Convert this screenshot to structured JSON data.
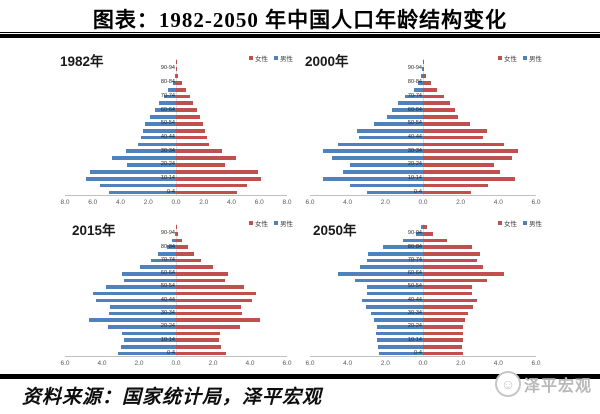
{
  "title": "图表：1982-2050 年中国人口年龄结构变化",
  "source_line": "资料来源：国家统计局，泽平宏观",
  "logo": {
    "text": "泽平宏观",
    "icon": "smiley-face-icon"
  },
  "colors": {
    "female": "#C0504D",
    "male": "#4F81BD"
  },
  "legend": {
    "female_label": "女性",
    "male_label": "男性"
  },
  "chart_data": [
    {
      "type": "bar",
      "subtype": "population-pyramid",
      "id": "1982",
      "year_label": "1982年",
      "x_max": 8.0,
      "x_ticks": [
        "8.0",
        "6.0",
        "4.0",
        "2.0",
        "0.0",
        "2.0",
        "4.0",
        "6.0",
        "8.0"
      ],
      "age_groups": [
        "0-4",
        "5-9",
        "10-14",
        "15-19",
        "20-24",
        "25-29",
        "30-34",
        "35-39",
        "40-44",
        "45-49",
        "50-54",
        "55-59",
        "60-64",
        "65-69",
        "70-74",
        "75-79",
        "80-84",
        "85-89",
        "90-94",
        "95+"
      ],
      "visible_age_labels": [
        "0-4",
        "10-14",
        "20-24",
        "30-34",
        "40-44",
        "50-54",
        "60-64",
        "70-74",
        "80-84",
        "90-94"
      ],
      "series": [
        {
          "name": "男性",
          "side": "left",
          "values": [
            4.8,
            5.5,
            6.5,
            6.2,
            3.55,
            4.6,
            3.6,
            2.75,
            2.5,
            2.35,
            2.2,
            1.9,
            1.55,
            1.2,
            0.9,
            0.55,
            0.25,
            0.1,
            0.03,
            0.01
          ]
        },
        {
          "name": "女性",
          "side": "right",
          "values": [
            4.4,
            5.1,
            6.1,
            5.9,
            3.5,
            4.3,
            3.35,
            2.4,
            2.2,
            2.1,
            1.95,
            1.7,
            1.5,
            1.2,
            1.0,
            0.7,
            0.4,
            0.15,
            0.05,
            0.02
          ]
        }
      ]
    },
    {
      "type": "bar",
      "subtype": "population-pyramid",
      "id": "2000",
      "year_label": "2000年",
      "x_max": 6.0,
      "x_ticks": [
        "6.0",
        "4.0",
        "2.0",
        "0.0",
        "2.0",
        "4.0",
        "6.0"
      ],
      "age_groups": [
        "0-4",
        "5-9",
        "10-14",
        "15-19",
        "20-24",
        "25-29",
        "30-34",
        "35-39",
        "40-44",
        "45-49",
        "50-54",
        "55-59",
        "60-64",
        "65-69",
        "70-74",
        "75-79",
        "80-84",
        "85-89",
        "90-94",
        "95+"
      ],
      "visible_age_labels": [
        "0-4",
        "10-14",
        "20-24",
        "30-34",
        "40-44",
        "50-54",
        "60-64",
        "70-74",
        "80-84",
        "90-94"
      ],
      "series": [
        {
          "name": "男性",
          "side": "left",
          "values": [
            3.0,
            3.9,
            5.3,
            4.25,
            3.9,
            4.85,
            5.3,
            4.5,
            3.4,
            3.5,
            2.6,
            1.9,
            1.65,
            1.35,
            0.95,
            0.5,
            0.25,
            0.1,
            0.03,
            0.01
          ]
        },
        {
          "name": "女性",
          "side": "right",
          "values": [
            2.55,
            3.45,
            4.9,
            4.1,
            3.75,
            4.7,
            5.05,
            4.3,
            3.2,
            3.4,
            2.5,
            1.85,
            1.7,
            1.45,
            1.1,
            0.75,
            0.4,
            0.18,
            0.07,
            0.02
          ]
        }
      ]
    },
    {
      "type": "bar",
      "subtype": "population-pyramid",
      "id": "2015",
      "year_label": "2015年",
      "x_max": 6.0,
      "x_ticks": [
        "6.0",
        "4.0",
        "2.0",
        "0.0",
        "2.0",
        "4.0",
        "6.0"
      ],
      "age_groups": [
        "0-4",
        "5-9",
        "10-14",
        "15-19",
        "20-24",
        "25-29",
        "30-34",
        "35-39",
        "40-44",
        "45-49",
        "50-54",
        "55-59",
        "60-64",
        "65-69",
        "70-74",
        "75-79",
        "80-84",
        "85-89",
        "90-94",
        "95+"
      ],
      "visible_age_labels": [
        "0-4",
        "10-14",
        "20-24",
        "30-34",
        "40-44",
        "50-54",
        "60-64",
        "70-74",
        "80-84",
        "90-94"
      ],
      "series": [
        {
          "name": "男性",
          "side": "left",
          "values": [
            3.15,
            3.0,
            2.8,
            2.9,
            3.7,
            4.7,
            3.6,
            3.55,
            4.3,
            4.5,
            3.8,
            2.8,
            2.9,
            1.95,
            1.35,
            0.95,
            0.5,
            0.2,
            0.07,
            0.02
          ]
        },
        {
          "name": "女性",
          "side": "right",
          "values": [
            2.7,
            2.45,
            2.35,
            2.4,
            3.45,
            4.55,
            3.55,
            3.5,
            4.1,
            4.35,
            3.65,
            2.65,
            2.8,
            2.0,
            1.35,
            1.0,
            0.65,
            0.35,
            0.12,
            0.04
          ]
        }
      ]
    },
    {
      "type": "bar",
      "subtype": "population-pyramid",
      "id": "2050",
      "year_label": "2050年",
      "x_max": 6.0,
      "x_ticks": [
        "6.0",
        "4.0",
        "2.0",
        "0.0",
        "2.0",
        "4.0",
        "6.0"
      ],
      "age_groups": [
        "0-4",
        "5-9",
        "10-14",
        "15-19",
        "20-24",
        "25-29",
        "30-34",
        "35-39",
        "40-44",
        "45-49",
        "50-54",
        "55-59",
        "60-64",
        "65-69",
        "70-74",
        "75-79",
        "80-84",
        "85-89",
        "90-94",
        "95+"
      ],
      "visible_age_labels": [
        "0-4",
        "10-14",
        "20-24",
        "30-34",
        "40-44",
        "50-54",
        "60-64",
        "70-74",
        "80-84",
        "90-94"
      ],
      "series": [
        {
          "name": "男性",
          "side": "left",
          "values": [
            2.35,
            2.4,
            2.45,
            2.5,
            2.45,
            2.6,
            2.75,
            3.05,
            3.25,
            3.0,
            2.95,
            3.6,
            4.5,
            3.35,
            2.95,
            2.9,
            2.1,
            1.05,
            0.35,
            0.1
          ]
        },
        {
          "name": "女性",
          "side": "right",
          "values": [
            2.1,
            2.05,
            2.1,
            2.1,
            2.15,
            2.25,
            2.4,
            2.65,
            2.85,
            2.6,
            2.6,
            3.4,
            4.3,
            3.2,
            2.85,
            3.0,
            2.6,
            1.3,
            0.55,
            0.2
          ]
        }
      ]
    }
  ]
}
